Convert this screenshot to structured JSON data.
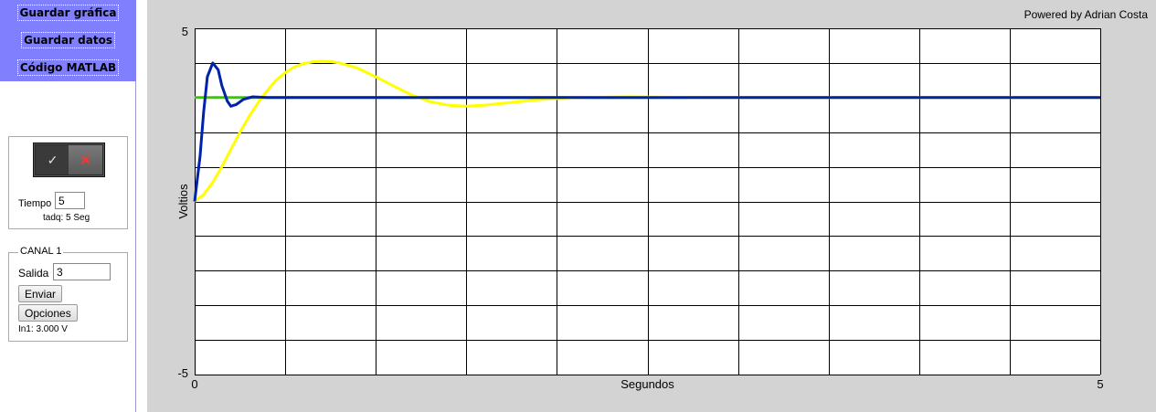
{
  "menu": {
    "save_chart": "Guardar gráfica",
    "save_data": "Guardar datos",
    "matlab_code": "Código MATLAB"
  },
  "acquisition": {
    "toggle_on_icon": "check-icon",
    "toggle_off_icon": "close-icon",
    "time_label": "Tiempo",
    "time_value": "5",
    "tadq_text": "tadq: 5 Seg"
  },
  "channel": {
    "legend": "CANAL 1",
    "output_label": "Salida",
    "output_value": "3",
    "send_label": "Enviar",
    "options_label": "Opciones",
    "reading": "In1: 3.000 V"
  },
  "credit": "Powered by Adrian Costa",
  "colors": {
    "menu_bg": "#8080ff",
    "panel_bg": "#d3d3d3",
    "green": "#33cc00",
    "yellow": "#ffff00",
    "blue": "#0022aa"
  },
  "chart_data": {
    "type": "line",
    "xlabel": "Segundos",
    "ylabel": "Voltios",
    "xlim": [
      0,
      5
    ],
    "ylim": [
      -5,
      5
    ],
    "x_ticks": [
      "0",
      "5"
    ],
    "y_ticks": [
      "5",
      "-5"
    ],
    "grid": true,
    "grid_divisions": {
      "x": 10,
      "y": 10
    },
    "series": [
      {
        "color": "#33cc00",
        "x": [
          0,
          5
        ],
        "y": [
          3,
          3
        ]
      },
      {
        "color": "#ffff00",
        "x": [
          0,
          0.05,
          0.1,
          0.15,
          0.2,
          0.25,
          0.3,
          0.35,
          0.4,
          0.45,
          0.5,
          0.55,
          0.6,
          0.65,
          0.7,
          0.75,
          0.8,
          0.9,
          1.0,
          1.1,
          1.2,
          1.3,
          1.4,
          1.5,
          1.6,
          1.75,
          1.9,
          2.1,
          2.4,
          2.8,
          3.2,
          3.6,
          4.0,
          4.5,
          5.0
        ],
        "y": [
          0,
          0.2,
          0.55,
          1.0,
          1.5,
          2.0,
          2.45,
          2.85,
          3.2,
          3.5,
          3.72,
          3.88,
          3.98,
          4.03,
          4.05,
          4.04,
          4.0,
          3.85,
          3.6,
          3.33,
          3.07,
          2.88,
          2.78,
          2.75,
          2.78,
          2.86,
          2.94,
          3.0,
          3.02,
          3.0,
          3.0,
          3.0,
          3.0,
          3.0,
          3.0
        ]
      },
      {
        "color": "#0022aa",
        "x": [
          0,
          0.03,
          0.05,
          0.07,
          0.1,
          0.13,
          0.15,
          0.18,
          0.2,
          0.23,
          0.27,
          0.32,
          0.4,
          0.5,
          0.7,
          1.0,
          1.5,
          2.0,
          2.5,
          3.0,
          3.5,
          4.0,
          4.5,
          5.0
        ],
        "y": [
          0,
          1.3,
          2.6,
          3.6,
          4.0,
          3.8,
          3.35,
          2.9,
          2.75,
          2.8,
          2.95,
          3.02,
          3.0,
          3.0,
          3.0,
          3.0,
          3.0,
          3.0,
          3.0,
          3.0,
          3.0,
          3.0,
          3.0,
          3.0
        ]
      }
    ]
  }
}
